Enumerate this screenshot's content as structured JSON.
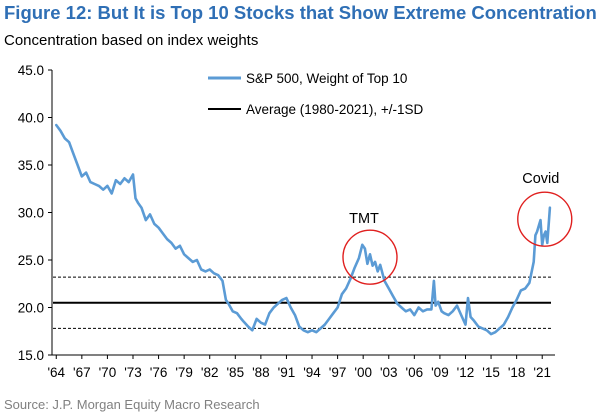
{
  "header": {
    "title": "Figure 12: But It is Top 10 Stocks that Show Extreme Concentration",
    "subtitle": "Concentration based on index weights"
  },
  "footer": {
    "source": "Source: J.P. Morgan Equity Macro Research"
  },
  "colors": {
    "title": "#2f6fb5",
    "series": "#5b9bd5",
    "average": "#000000",
    "circle": "#e0201f"
  },
  "chart_data": {
    "type": "line",
    "ylim": [
      15.0,
      45.0
    ],
    "xlim": [
      1963.5,
      2022.5
    ],
    "yticks": [
      15.0,
      20.0,
      25.0,
      30.0,
      35.0,
      40.0,
      45.0
    ],
    "ytick_labels": [
      "15.0",
      "20.0",
      "25.0",
      "30.0",
      "35.0",
      "40.0",
      "45.0"
    ],
    "xticks": [
      1964,
      1967,
      1970,
      1973,
      1976,
      1979,
      1982,
      1985,
      1988,
      1991,
      1994,
      1997,
      2000,
      2003,
      2006,
      2009,
      2012,
      2015,
      2018,
      2021
    ],
    "xtick_labels": [
      "'64",
      "'67",
      "'70",
      "'73",
      "'76",
      "'79",
      "'82",
      "'85",
      "'88",
      "'91",
      "'94",
      "'97",
      "'00",
      "'03",
      "'06",
      "'09",
      "'12",
      "'15",
      "'18",
      "'21"
    ],
    "legend": {
      "position": "top-center"
    },
    "series": [
      {
        "name": "S&P 500, Weight of Top 10",
        "x": [
          1964,
          1964.5,
          1965,
          1965.5,
          1966,
          1966.5,
          1967,
          1967.5,
          1968,
          1968.5,
          1969,
          1969.5,
          1970,
          1970.5,
          1971,
          1971.5,
          1972,
          1972.5,
          1973,
          1973.3,
          1973.6,
          1974,
          1974.5,
          1975,
          1975.5,
          1976,
          1976.5,
          1977,
          1977.5,
          1978,
          1978.5,
          1979,
          1979.5,
          1980,
          1980.5,
          1981,
          1981.5,
          1982,
          1982.5,
          1983,
          1983.5,
          1983.9,
          1984.2,
          1984.7,
          1985.2,
          1985.7,
          1986,
          1986.5,
          1987,
          1987.5,
          1988,
          1988.5,
          1989,
          1989.5,
          1990,
          1990.5,
          1991,
          1991.5,
          1992,
          1992.5,
          1993,
          1993.5,
          1994,
          1994.5,
          1995,
          1995.5,
          1996,
          1996.5,
          1997,
          1997.5,
          1998,
          1998.5,
          1999,
          1999.5,
          1999.9,
          2000.2,
          2000.5,
          2000.8,
          2001.1,
          2001.4,
          2001.7,
          2002,
          2002.5,
          2003,
          2003.5,
          2004,
          2004.5,
          2005,
          2005.5,
          2006,
          2006.5,
          2007,
          2007.5,
          2008,
          2008.3,
          2008.5,
          2008.8,
          2009.2,
          2009.5,
          2010,
          2010.5,
          2011,
          2011.5,
          2012,
          2012.3,
          2012.6,
          2013,
          2013.5,
          2014,
          2014.5,
          2015,
          2015.5,
          2016,
          2016.5,
          2017,
          2017.5,
          2018,
          2018.5,
          2019,
          2019.5,
          2020,
          2020.2,
          2020.4,
          2020.6,
          2020.8,
          2021,
          2021.2,
          2021.4,
          2021.6,
          2021.8,
          2021.9
        ],
        "values": [
          39.2,
          38.6,
          37.8,
          37.4,
          36.2,
          35.0,
          33.8,
          34.2,
          33.2,
          33.0,
          32.8,
          32.4,
          32.8,
          32.0,
          33.4,
          33.0,
          33.6,
          33.2,
          34.0,
          31.5,
          31.0,
          30.5,
          29.2,
          29.8,
          28.8,
          28.4,
          27.8,
          27.2,
          26.8,
          26.2,
          26.5,
          25.6,
          25.2,
          24.8,
          25.0,
          24.0,
          23.8,
          24.0,
          23.6,
          23.4,
          22.8,
          20.8,
          20.4,
          19.6,
          19.4,
          18.8,
          18.5,
          18.0,
          17.6,
          18.8,
          18.4,
          18.2,
          19.4,
          20.0,
          20.4,
          20.8,
          21.0,
          20.0,
          19.2,
          18.0,
          17.6,
          17.4,
          17.6,
          17.4,
          17.8,
          18.2,
          18.8,
          19.4,
          20.0,
          21.4,
          22.0,
          23.0,
          24.2,
          25.2,
          26.6,
          26.2,
          24.6,
          25.6,
          24.4,
          24.8,
          23.8,
          24.5,
          22.8,
          22.0,
          21.2,
          20.4,
          20.0,
          19.6,
          19.8,
          19.2,
          20.0,
          19.6,
          19.8,
          19.8,
          22.8,
          20.2,
          20.6,
          19.6,
          19.4,
          19.2,
          19.6,
          20.2,
          19.2,
          18.2,
          21.0,
          19.0,
          18.6,
          18.0,
          17.8,
          17.6,
          17.2,
          17.4,
          17.8,
          18.2,
          19.0,
          20.0,
          20.8,
          21.8,
          22.0,
          22.6,
          24.8,
          27.6,
          28.0,
          28.6,
          29.2,
          26.6,
          27.6,
          28.0,
          26.8,
          29.2,
          30.5
        ]
      },
      {
        "name": "Average (1980-2021), +/-1SD",
        "mean": 20.5,
        "upper": 23.2,
        "lower": 17.8
      }
    ],
    "annotations": [
      {
        "text": "TMT",
        "x": 2000.8,
        "y": 25.3
      },
      {
        "text": "Covid",
        "x": 2021.3,
        "y": 29.3
      }
    ]
  }
}
